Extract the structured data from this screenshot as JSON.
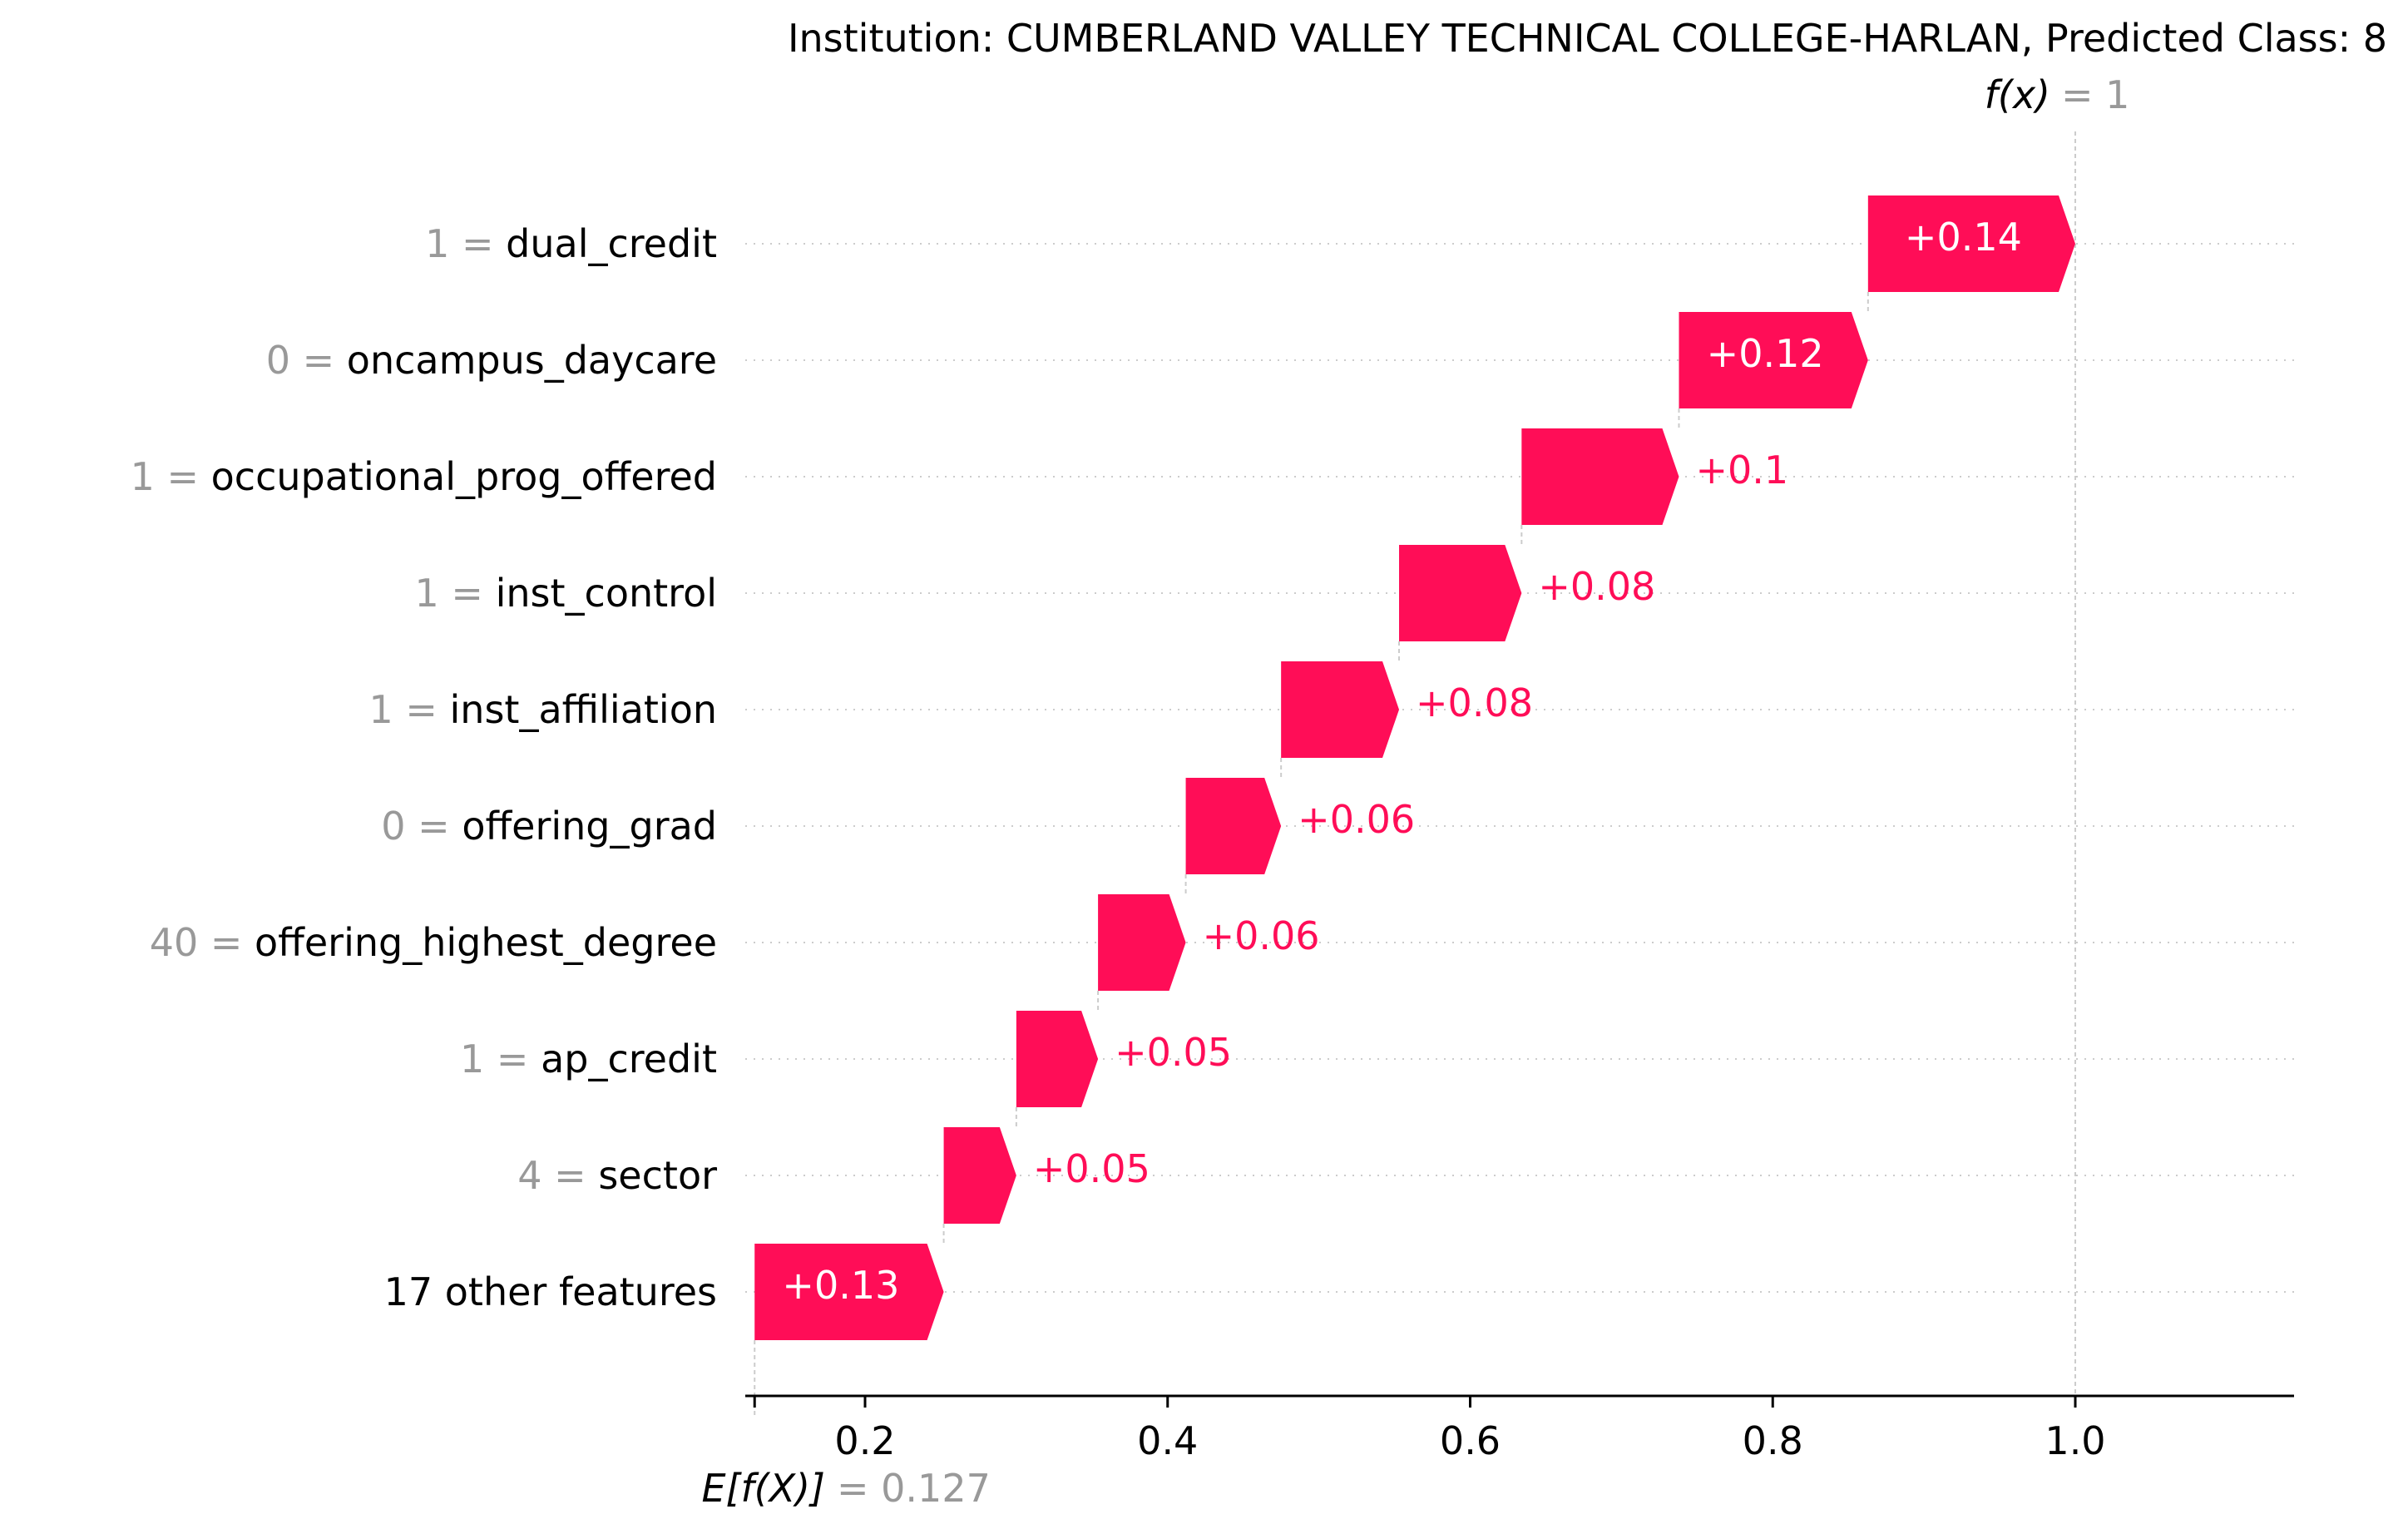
{
  "chart_data": {
    "type": "waterfall",
    "title": "Institution: CUMBERLAND VALLEY TECHNICAL COLLEGE-HARLAN, Predicted Class: 8",
    "fx": {
      "label": "f(x)",
      "value_text": "= 1",
      "value": 1.0
    },
    "expected": {
      "label": "E[f(X)]",
      "value_text": "= 0.127",
      "value": 0.127
    },
    "xlim": [
      0.12,
      1.14
    ],
    "x_ticks": [
      {
        "value": 0.2,
        "label": "0.2"
      },
      {
        "value": 0.4,
        "label": "0.4"
      },
      {
        "value": 0.6,
        "label": "0.6"
      },
      {
        "value": 0.8,
        "label": "0.8"
      },
      {
        "value": 1.0,
        "label": "1.0"
      }
    ],
    "features": [
      {
        "value_text": "1 =",
        "name": "dual_credit",
        "shap": 0.14,
        "label": "+0.14",
        "start": 0.863,
        "end": 1.0
      },
      {
        "value_text": "0 =",
        "name": "oncampus_daycare",
        "shap": 0.12,
        "label": "+0.12",
        "start": 0.738,
        "end": 0.863
      },
      {
        "value_text": "1 =",
        "name": "occupational_prog_offered",
        "shap": 0.1,
        "label": "+0.1",
        "start": 0.634,
        "end": 0.738
      },
      {
        "value_text": "1 =",
        "name": "inst_control",
        "shap": 0.08,
        "label": "+0.08",
        "start": 0.553,
        "end": 0.634
      },
      {
        "value_text": "1 =",
        "name": "inst_affiliation",
        "shap": 0.08,
        "label": "+0.08",
        "start": 0.475,
        "end": 0.553
      },
      {
        "value_text": "0 =",
        "name": "offering_grad",
        "shap": 0.06,
        "label": "+0.06",
        "start": 0.412,
        "end": 0.475
      },
      {
        "value_text": "40 =",
        "name": "offering_highest_degree",
        "shap": 0.06,
        "label": "+0.06",
        "start": 0.354,
        "end": 0.412
      },
      {
        "value_text": "1 =",
        "name": "ap_credit",
        "shap": 0.05,
        "label": "+0.05",
        "start": 0.3,
        "end": 0.354
      },
      {
        "value_text": "4 =",
        "name": "sector",
        "shap": 0.05,
        "label": "+0.05",
        "start": 0.252,
        "end": 0.3
      },
      {
        "value_text": "",
        "name": "17 other features",
        "shap": 0.13,
        "label": "+0.13",
        "start": 0.127,
        "end": 0.252
      }
    ],
    "colors": {
      "positive": "#ff0d57",
      "value_gray": "#999999",
      "text": "#000000",
      "label_inside": "#ffffff",
      "grid": "#cccccc"
    }
  }
}
